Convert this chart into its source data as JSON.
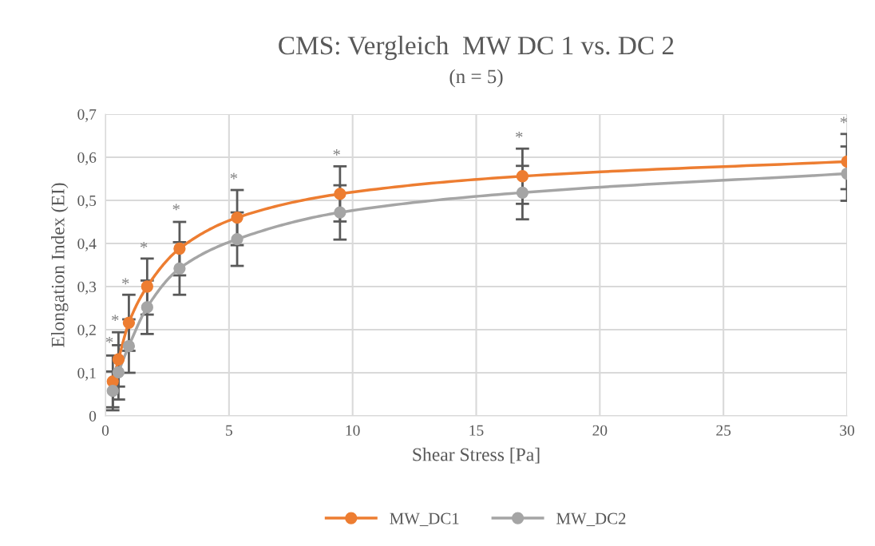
{
  "chart_data": {
    "type": "line",
    "title": "CMS: Vergleich  MW DC 1 vs. DC 2",
    "subtitle": "(n = 5)",
    "xlabel": "Shear Stress [Pa]",
    "ylabel": "Elongation Index (EI)",
    "x": [
      0.3,
      0.53,
      0.95,
      1.69,
      3.0,
      5.33,
      9.49,
      16.87,
      30
    ],
    "series": [
      {
        "name": "MW_DC1",
        "color": "#ed7d31",
        "values": [
          0.08,
          0.131,
          0.216,
          0.3,
          0.388,
          0.46,
          0.515,
          0.556,
          0.59
        ],
        "errors": [
          0.06,
          0.063,
          0.065,
          0.065,
          0.062,
          0.064,
          0.064,
          0.064,
          0.064
        ]
      },
      {
        "name": "MW_DC2",
        "color": "#a5a5a5",
        "values": [
          0.058,
          0.101,
          0.162,
          0.252,
          0.342,
          0.41,
          0.472,
          0.518,
          0.562
        ],
        "errors": [
          0.045,
          0.063,
          0.062,
          0.062,
          0.061,
          0.062,
          0.063,
          0.062,
          0.063
        ]
      }
    ],
    "annotations": [
      {
        "text": "*",
        "x": 0.3,
        "y": 0.08
      },
      {
        "text": "*",
        "x": 0.53,
        "y": 0.131
      },
      {
        "text": "*",
        "x": 0.95,
        "y": 0.216
      },
      {
        "text": "*",
        "x": 1.69,
        "y": 0.3
      },
      {
        "text": "*",
        "x": 3.0,
        "y": 0.388
      },
      {
        "text": "*",
        "x": 5.33,
        "y": 0.46
      },
      {
        "text": "*",
        "x": 9.49,
        "y": 0.515
      },
      {
        "text": "*",
        "x": 16.87,
        "y": 0.556
      },
      {
        "text": "*",
        "x": 30,
        "y": 0.59
      }
    ],
    "xlim": [
      0,
      30
    ],
    "xticks": [
      0,
      5,
      10,
      15,
      20,
      25,
      30
    ],
    "ylim": [
      0,
      0.7
    ],
    "yticks": [
      {
        "value": 0,
        "label": "0"
      },
      {
        "value": 0.1,
        "label": "0,1"
      },
      {
        "value": 0.2,
        "label": "0,2"
      },
      {
        "value": 0.3,
        "label": "0,3"
      },
      {
        "value": 0.4,
        "label": "0,4"
      },
      {
        "value": 0.5,
        "label": "0,5"
      },
      {
        "value": 0.6,
        "label": "0,6"
      },
      {
        "value": 0.7,
        "label": "0,7"
      }
    ],
    "grid": true,
    "legend": "bottom",
    "marker": "circle",
    "line_style": "solid"
  }
}
